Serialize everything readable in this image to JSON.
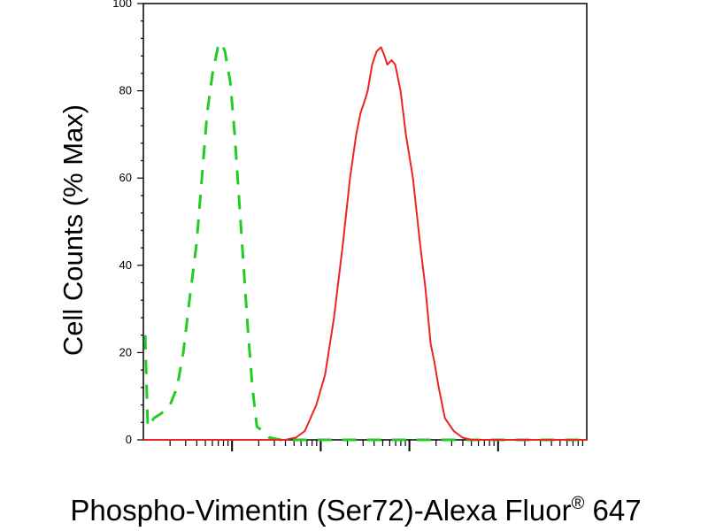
{
  "chart_data": {
    "type": "line",
    "title": "",
    "xlabel": "Phospho-Vimentin (Ser72)-Alexa Fluor",
    "xlabel_superscript": "®",
    "xlabel_suffix": " 647",
    "ylabel": "Cell Counts (% Max)",
    "x_scale": "log",
    "x_tick_labels_visible": false,
    "xlim": [
      0.0,
      5.0
    ],
    "ylim": [
      0,
      100
    ],
    "yticks": [
      0,
      20,
      40,
      60,
      80,
      100
    ],
    "grid": false,
    "legend": "none",
    "series": [
      {
        "color": "#22cc22",
        "style": "dashed",
        "points": [
          [
            0.02,
            24
          ],
          [
            0.05,
            3
          ],
          [
            0.12,
            5
          ],
          [
            0.2,
            6
          ],
          [
            0.3,
            8
          ],
          [
            0.38,
            12
          ],
          [
            0.45,
            20
          ],
          [
            0.52,
            32
          ],
          [
            0.6,
            45
          ],
          [
            0.66,
            60
          ],
          [
            0.72,
            75
          ],
          [
            0.78,
            84
          ],
          [
            0.84,
            90
          ],
          [
            0.88,
            91
          ],
          [
            0.92,
            89
          ],
          [
            0.98,
            82
          ],
          [
            1.03,
            70
          ],
          [
            1.08,
            55
          ],
          [
            1.13,
            40
          ],
          [
            1.18,
            25
          ],
          [
            1.23,
            12
          ],
          [
            1.28,
            3
          ],
          [
            1.35,
            2
          ],
          [
            1.42,
            0.5
          ],
          [
            1.55,
            0
          ],
          [
            2.5,
            0
          ],
          [
            3.5,
            0
          ],
          [
            5.0,
            0
          ]
        ]
      },
      {
        "color": "#ee2222",
        "style": "solid",
        "points": [
          [
            0.0,
            0
          ],
          [
            0.7,
            0
          ],
          [
            1.3,
            0
          ],
          [
            1.6,
            0
          ],
          [
            1.72,
            0.5
          ],
          [
            1.82,
            2
          ],
          [
            1.95,
            8
          ],
          [
            2.05,
            15
          ],
          [
            2.15,
            28
          ],
          [
            2.25,
            45
          ],
          [
            2.33,
            60
          ],
          [
            2.4,
            70
          ],
          [
            2.45,
            75
          ],
          [
            2.5,
            78
          ],
          [
            2.53,
            80
          ],
          [
            2.58,
            86
          ],
          [
            2.63,
            89
          ],
          [
            2.68,
            90
          ],
          [
            2.72,
            88
          ],
          [
            2.75,
            86
          ],
          [
            2.8,
            87
          ],
          [
            2.84,
            86
          ],
          [
            2.9,
            80
          ],
          [
            2.96,
            70
          ],
          [
            3.04,
            60
          ],
          [
            3.12,
            45
          ],
          [
            3.18,
            35
          ],
          [
            3.24,
            22
          ],
          [
            3.28,
            18
          ],
          [
            3.33,
            12
          ],
          [
            3.4,
            5
          ],
          [
            3.5,
            2
          ],
          [
            3.6,
            0.5
          ],
          [
            3.7,
            0
          ],
          [
            5.0,
            0
          ]
        ]
      }
    ]
  }
}
